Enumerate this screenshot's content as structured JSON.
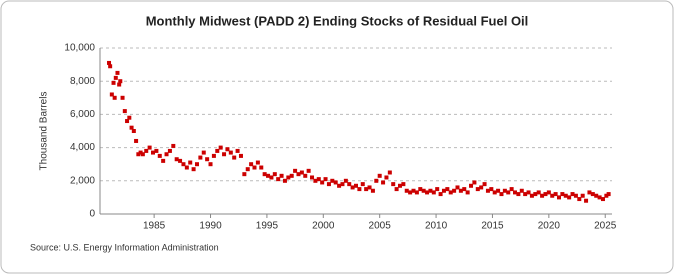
{
  "chart_data": {
    "type": "scatter",
    "title": "Monthly Midwest (PADD 2) Ending Stocks of Residual Fuel Oil",
    "y_label": "Thousand Barrels",
    "source": "Source: U.S. Energy Information Administration",
    "color": "#cc0000",
    "grid": true,
    "xlim": [
      1980.2,
      2025.6
    ],
    "ylim": [
      0,
      10000
    ],
    "xticks": [
      1985,
      1990,
      1995,
      2000,
      2005,
      2010,
      2015,
      2020,
      2025
    ],
    "yticks": [
      0,
      {
        "value": 2000,
        "label": "2,000"
      },
      {
        "value": 4000,
        "label": "4,000"
      },
      {
        "value": 6000,
        "label": "6,000"
      },
      {
        "value": 8000,
        "label": "8,000"
      },
      {
        "value": 10000,
        "label": "10,000"
      }
    ],
    "x": [
      1981.0,
      1981.1,
      1981.25,
      1981.4,
      1981.5,
      1981.6,
      1981.75,
      1981.9,
      1982.0,
      1982.2,
      1982.4,
      1982.6,
      1982.8,
      1983.0,
      1983.2,
      1983.4,
      1983.6,
      1983.8,
      1984.0,
      1984.3,
      1984.6,
      1984.9,
      1985.2,
      1985.5,
      1985.8,
      1986.1,
      1986.4,
      1986.7,
      1987.0,
      1987.3,
      1987.6,
      1987.9,
      1988.2,
      1988.5,
      1988.8,
      1989.1,
      1989.4,
      1989.7,
      1990.0,
      1990.3,
      1990.6,
      1990.9,
      1991.2,
      1991.5,
      1991.8,
      1992.1,
      1992.4,
      1992.7,
      1993.0,
      1993.3,
      1993.6,
      1993.9,
      1994.2,
      1994.5,
      1994.8,
      1995.1,
      1995.4,
      1995.7,
      1996.0,
      1996.3,
      1996.6,
      1996.9,
      1997.2,
      1997.5,
      1997.8,
      1998.1,
      1998.4,
      1998.7,
      1999.0,
      1999.3,
      1999.6,
      1999.9,
      2000.2,
      2000.5,
      2000.8,
      2001.1,
      2001.4,
      2001.7,
      2002.0,
      2002.3,
      2002.6,
      2002.9,
      2003.2,
      2003.5,
      2003.8,
      2004.1,
      2004.4,
      2004.7,
      2005.0,
      2005.3,
      2005.6,
      2005.9,
      2006.2,
      2006.5,
      2006.8,
      2007.1,
      2007.4,
      2007.7,
      2008.0,
      2008.3,
      2008.6,
      2008.9,
      2009.2,
      2009.5,
      2009.8,
      2010.1,
      2010.4,
      2010.7,
      2011.0,
      2011.3,
      2011.6,
      2011.9,
      2012.2,
      2012.5,
      2012.8,
      2013.1,
      2013.4,
      2013.7,
      2014.0,
      2014.3,
      2014.6,
      2014.9,
      2015.2,
      2015.5,
      2015.8,
      2016.1,
      2016.4,
      2016.7,
      2017.0,
      2017.3,
      2017.6,
      2017.9,
      2018.2,
      2018.5,
      2018.8,
      2019.1,
      2019.4,
      2019.7,
      2020.0,
      2020.3,
      2020.6,
      2020.9,
      2021.2,
      2021.5,
      2021.8,
      2022.1,
      2022.4,
      2022.7,
      2023.0,
      2023.3,
      2023.6,
      2023.9,
      2024.2,
      2024.5,
      2024.8,
      2025.1,
      2025.3
    ],
    "values": [
      9100,
      8900,
      7200,
      7900,
      7000,
      8200,
      8500,
      7800,
      8000,
      7000,
      6200,
      5600,
      5800,
      5200,
      5000,
      4400,
      3600,
      3700,
      3600,
      3800,
      4000,
      3700,
      3800,
      3500,
      3200,
      3600,
      3800,
      4100,
      3300,
      3200,
      3000,
      2800,
      3100,
      2700,
      3000,
      3400,
      3700,
      3300,
      3000,
      3500,
      3800,
      4000,
      3600,
      3900,
      3700,
      3400,
      3800,
      3500,
      2400,
      2700,
      3000,
      2800,
      3100,
      2800,
      2400,
      2300,
      2200,
      2400,
      2100,
      2300,
      2000,
      2200,
      2300,
      2600,
      2400,
      2500,
      2300,
      2600,
      2200,
      2000,
      2100,
      1900,
      2100,
      1800,
      2000,
      1900,
      1700,
      1800,
      2000,
      1800,
      1600,
      1700,
      1500,
      1800,
      1500,
      1600,
      1400,
      2000,
      2300,
      1900,
      2200,
      2500,
      1800,
      1500,
      1700,
      1800,
      1400,
      1300,
      1400,
      1300,
      1500,
      1400,
      1300,
      1400,
      1300,
      1500,
      1200,
      1400,
      1500,
      1300,
      1400,
      1600,
      1400,
      1500,
      1300,
      1700,
      1900,
      1500,
      1600,
      1800,
      1400,
      1500,
      1300,
      1400,
      1200,
      1400,
      1300,
      1500,
      1300,
      1200,
      1400,
      1200,
      1300,
      1100,
      1200,
      1300,
      1100,
      1200,
      1300,
      1100,
      1200,
      1000,
      1200,
      1100,
      1000,
      1200,
      1100,
      900,
      1100,
      800,
      1300,
      1200,
      1100,
      1000,
      900,
      1100,
      1200
    ]
  }
}
